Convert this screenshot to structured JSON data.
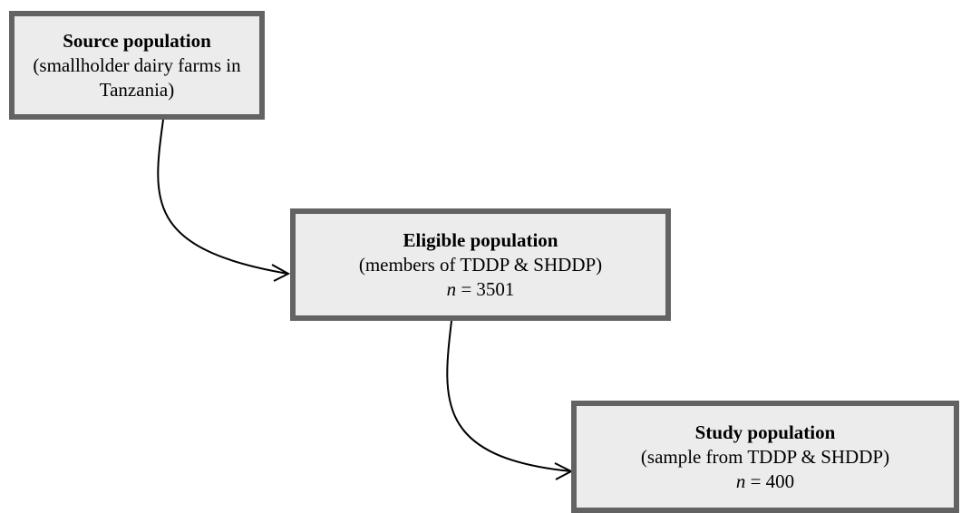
{
  "nodes": [
    {
      "title": "Source population",
      "description": "(smallholder dairy farms in Tanzania)"
    },
    {
      "title": "Eligible population",
      "description": "(members of TDDP & SHDDP)",
      "size_symbol": "n",
      "size_text": "= 3501"
    },
    {
      "title": "Study population",
      "description": "(sample from TDDP & SHDDP)",
      "size_symbol": "n",
      "size_text": "= 400"
    }
  ]
}
